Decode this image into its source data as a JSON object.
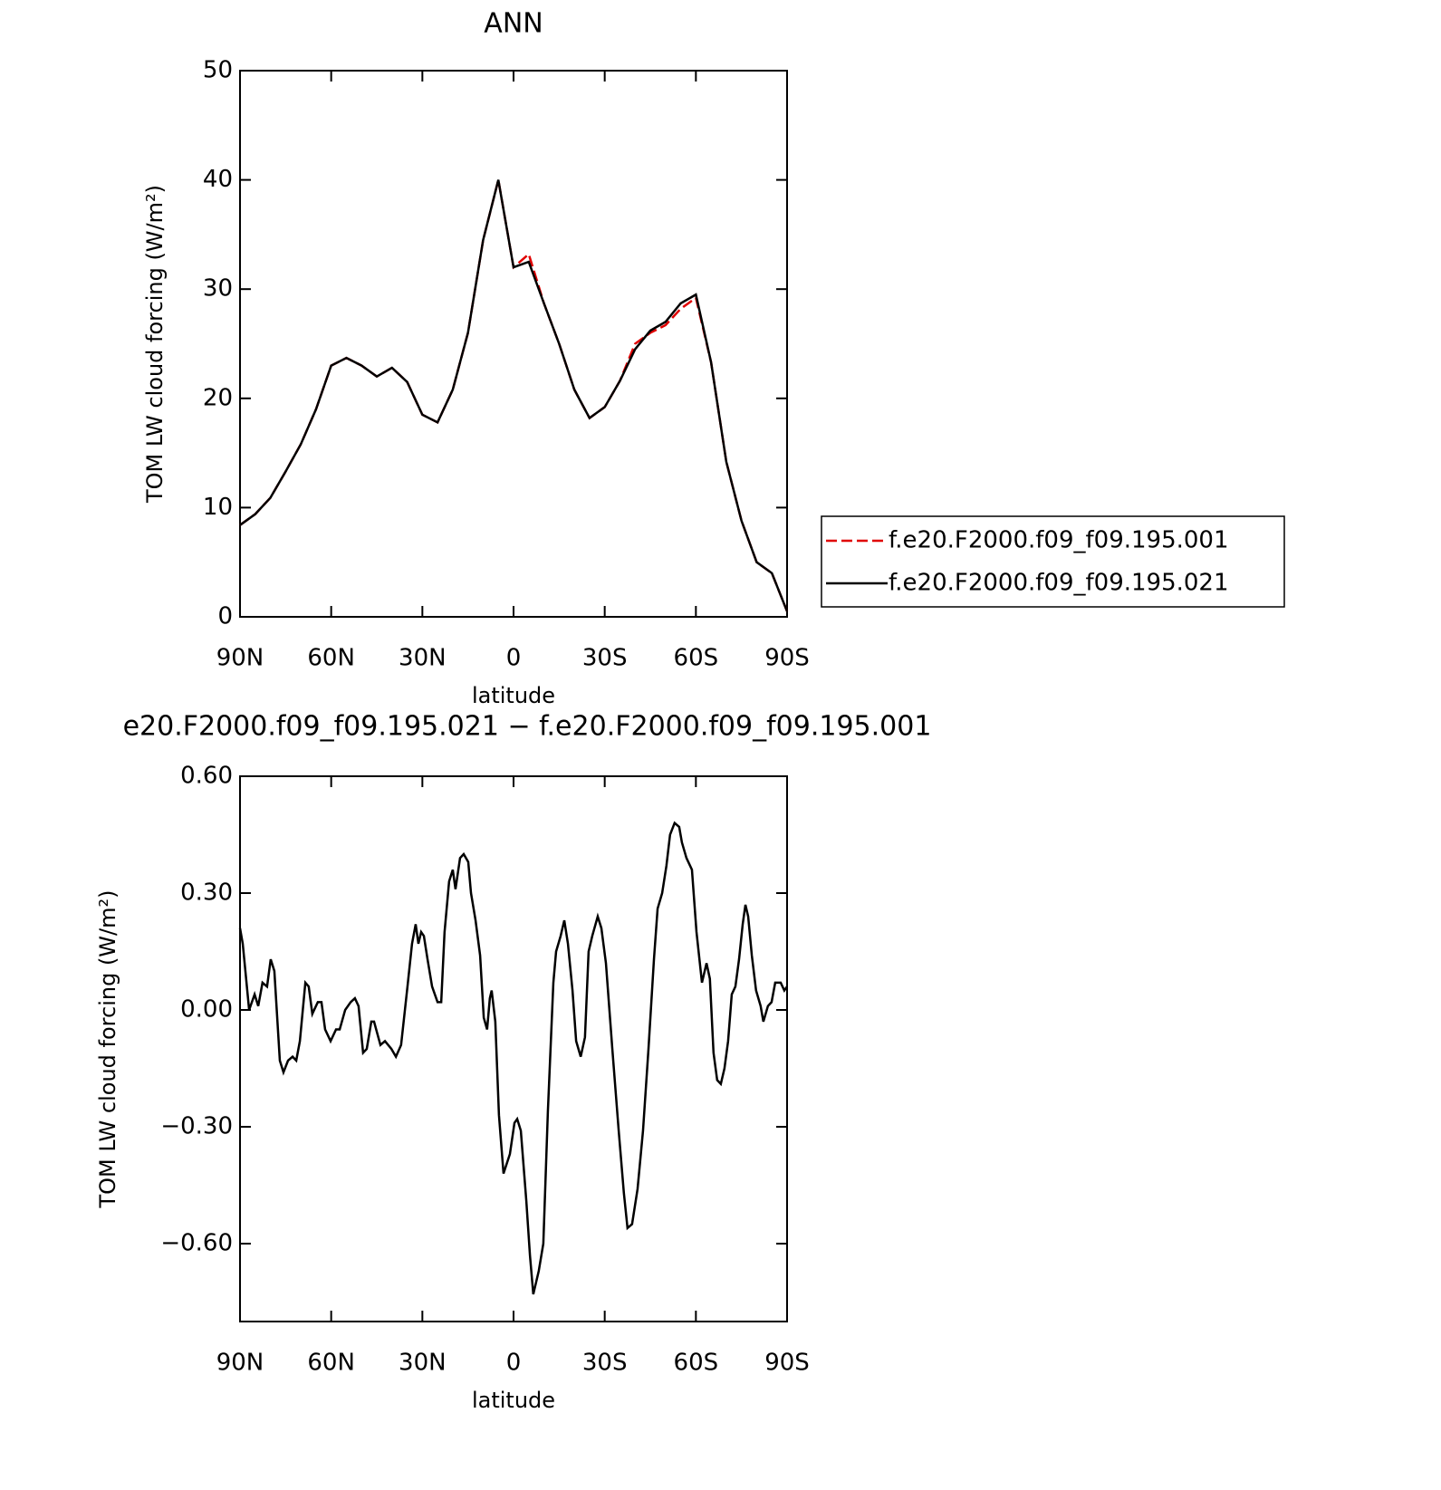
{
  "chart_data": [
    {
      "type": "line",
      "title": "ANN",
      "x_label": "latitude",
      "y_label": "TOM LW cloud forcing (W/m²)",
      "x": [
        90,
        85,
        80,
        75,
        70,
        65,
        60,
        55,
        50,
        45,
        40,
        35,
        30,
        25,
        20,
        15,
        10,
        5,
        0,
        -5,
        -10,
        -15,
        -20,
        -25,
        -30,
        -35,
        -40,
        -45,
        -50,
        -55,
        -60,
        -65,
        -70,
        -75,
        -80,
        -85,
        -90
      ],
      "series": [
        {
          "name": "f.e20.F2000.f09_f09.195.001",
          "color": "#e00000",
          "dashed": true,
          "values": [
            8.4,
            9.4,
            10.9,
            13.3,
            15.8,
            19,
            23,
            23.7,
            23,
            22,
            22.8,
            21.5,
            18.5,
            17.8,
            20.8,
            26,
            34.5,
            40,
            32,
            33.2,
            28.7,
            25,
            20.8,
            18.2,
            19.2,
            21.6,
            25,
            26,
            26.7,
            28.2,
            29.2,
            23.3,
            14.2,
            8.8,
            5,
            4,
            0.5
          ]
        },
        {
          "name": "f.e20.F2000.f09_f09.195.021",
          "color": "#000000",
          "dashed": false,
          "values": [
            8.4,
            9.4,
            10.9,
            13.3,
            15.8,
            19,
            23,
            23.7,
            23,
            22,
            22.8,
            21.5,
            18.5,
            17.8,
            20.8,
            26,
            34.5,
            40,
            32,
            32.5,
            28.7,
            25,
            20.8,
            18.2,
            19.2,
            21.6,
            24.5,
            26.2,
            27,
            28.7,
            29.5,
            23.3,
            14.2,
            8.8,
            5,
            4,
            0.5
          ]
        }
      ],
      "xlim": [
        90,
        -90
      ],
      "xticks": [
        {
          "value": 90,
          "label": "90N"
        },
        {
          "value": 60,
          "label": "60N"
        },
        {
          "value": 30,
          "label": "30N"
        },
        0,
        {
          "value": -30,
          "label": "30S"
        },
        {
          "value": -60,
          "label": "60S"
        },
        {
          "value": -90,
          "label": "90S"
        }
      ],
      "ylim": [
        0,
        50
      ],
      "yticks": [
        0,
        10,
        20,
        30,
        40,
        50
      ],
      "legend": "right"
    },
    {
      "type": "line",
      "title": "e20.F2000.f09_f09.195.021 − f.e20.F2000.f09_f09.195.001",
      "x_label": "latitude",
      "y_label": "TOM LW cloud forcing (W/m²)",
      "x": [
        90,
        89.1,
        87.0,
        85.2,
        84.0,
        82.6,
        81.1,
        79.9,
        78.7,
        76.9,
        75.7,
        74.2,
        72.7,
        71.5,
        70.3,
        68.5,
        67.4,
        66.2,
        64.4,
        63.2,
        62.0,
        60.2,
        58.4,
        57.2,
        55.4,
        53.6,
        52.2,
        51.0,
        49.5,
        48.3,
        46.8,
        45.9,
        43.8,
        42.3,
        40.2,
        38.7,
        37.0,
        34.9,
        33.4,
        32.2,
        31.3,
        30.4,
        29.5,
        28.3,
        26.8,
        25.0,
        23.8,
        22.7,
        21.2,
        20.0,
        19.1,
        17.6,
        16.4,
        14.9,
        14.0,
        12.5,
        11.0,
        9.8,
        8.7,
        7.8,
        7.2,
        6.0,
        4.8,
        3.3,
        1.2,
        -0.3,
        -1.2,
        -2.4,
        -4.2,
        -5.4,
        -6.5,
        -8.3,
        -9.8,
        -11.3,
        -13.1,
        -14.0,
        -15.5,
        -16.7,
        -17.9,
        -19.4,
        -20.6,
        -22.1,
        -23.5,
        -24.7,
        -25.9,
        -27.7,
        -28.9,
        -30.4,
        -32.5,
        -34.6,
        -36.3,
        -37.5,
        -39.0,
        -40.8,
        -42.6,
        -44.4,
        -46.2,
        -47.4,
        -48.9,
        -50.3,
        -51.5,
        -53.0,
        -54.5,
        -55.4,
        -56.9,
        -58.7,
        -60.2,
        -62.0,
        -63.5,
        -64.6,
        -65.8,
        -67.0,
        -68.2,
        -69.4,
        -70.6,
        -71.8,
        -73.0,
        -74.2,
        -75.4,
        -76.3,
        -77.2,
        -78.4,
        -79.8,
        -81.3,
        -82.2,
        -83.7,
        -84.9,
        -86.1,
        -87.9,
        -89.1,
        -90
      ],
      "series": [
        {
          "name": null,
          "color": "#000000",
          "dashed": false,
          "values": [
            0.21,
            0.17,
            0,
            0.04,
            0.01,
            0.07,
            0.06,
            0.13,
            0.1,
            -0.13,
            -0.16,
            -0.13,
            -0.12,
            -0.13,
            -0.08,
            0.07,
            0.06,
            -0.01,
            0.02,
            0.02,
            -0.05,
            -0.08,
            -0.05,
            -0.05,
            0.0,
            0.02,
            0.03,
            0.01,
            -0.11,
            -0.1,
            -0.03,
            -0.03,
            -0.09,
            -0.08,
            -0.1,
            -0.12,
            -0.09,
            0.06,
            0.17,
            0.22,
            0.17,
            0.2,
            0.19,
            0.13,
            0.06,
            0.02,
            0.02,
            0.2,
            0.33,
            0.36,
            0.31,
            0.39,
            0.4,
            0.38,
            0.3,
            0.23,
            0.14,
            -0.02,
            -0.05,
            0.03,
            0.05,
            -0.03,
            -0.27,
            -0.42,
            -0.37,
            -0.29,
            -0.28,
            -0.31,
            -0.49,
            -0.63,
            -0.73,
            -0.67,
            -0.6,
            -0.26,
            0.07,
            0.15,
            0.19,
            0.23,
            0.17,
            0.05,
            -0.08,
            -0.12,
            -0.07,
            0.15,
            0.19,
            0.24,
            0.21,
            0.12,
            -0.1,
            -0.31,
            -0.47,
            -0.56,
            -0.55,
            -0.46,
            -0.31,
            -0.1,
            0.13,
            0.26,
            0.3,
            0.37,
            0.45,
            0.48,
            0.47,
            0.43,
            0.39,
            0.36,
            0.2,
            0.07,
            0.12,
            0.08,
            -0.11,
            -0.18,
            -0.19,
            -0.15,
            -0.08,
            0.04,
            0.06,
            0.13,
            0.22,
            0.27,
            0.24,
            0.14,
            0.05,
            0.01,
            -0.03,
            0.01,
            0.02,
            0.07,
            0.07,
            0.05,
            0.06
          ]
        }
      ],
      "xlim": [
        90,
        -90
      ],
      "xticks": [
        {
          "value": 90,
          "label": "90N"
        },
        {
          "value": 60,
          "label": "60N"
        },
        {
          "value": 30,
          "label": "30N"
        },
        0,
        {
          "value": -30,
          "label": "30S"
        },
        {
          "value": -60,
          "label": "60S"
        },
        {
          "value": -90,
          "label": "90S"
        }
      ],
      "ylim": [
        -0.8,
        0.6
      ],
      "yticks": [
        {
          "value": -0.6,
          "label": "−0.60"
        },
        {
          "value": -0.3,
          "label": "−0.30"
        },
        {
          "value": 0,
          "label": "0.00"
        },
        {
          "value": 0.3,
          "label": "0.30"
        },
        {
          "value": 0.6,
          "label": "0.60"
        }
      ]
    }
  ]
}
